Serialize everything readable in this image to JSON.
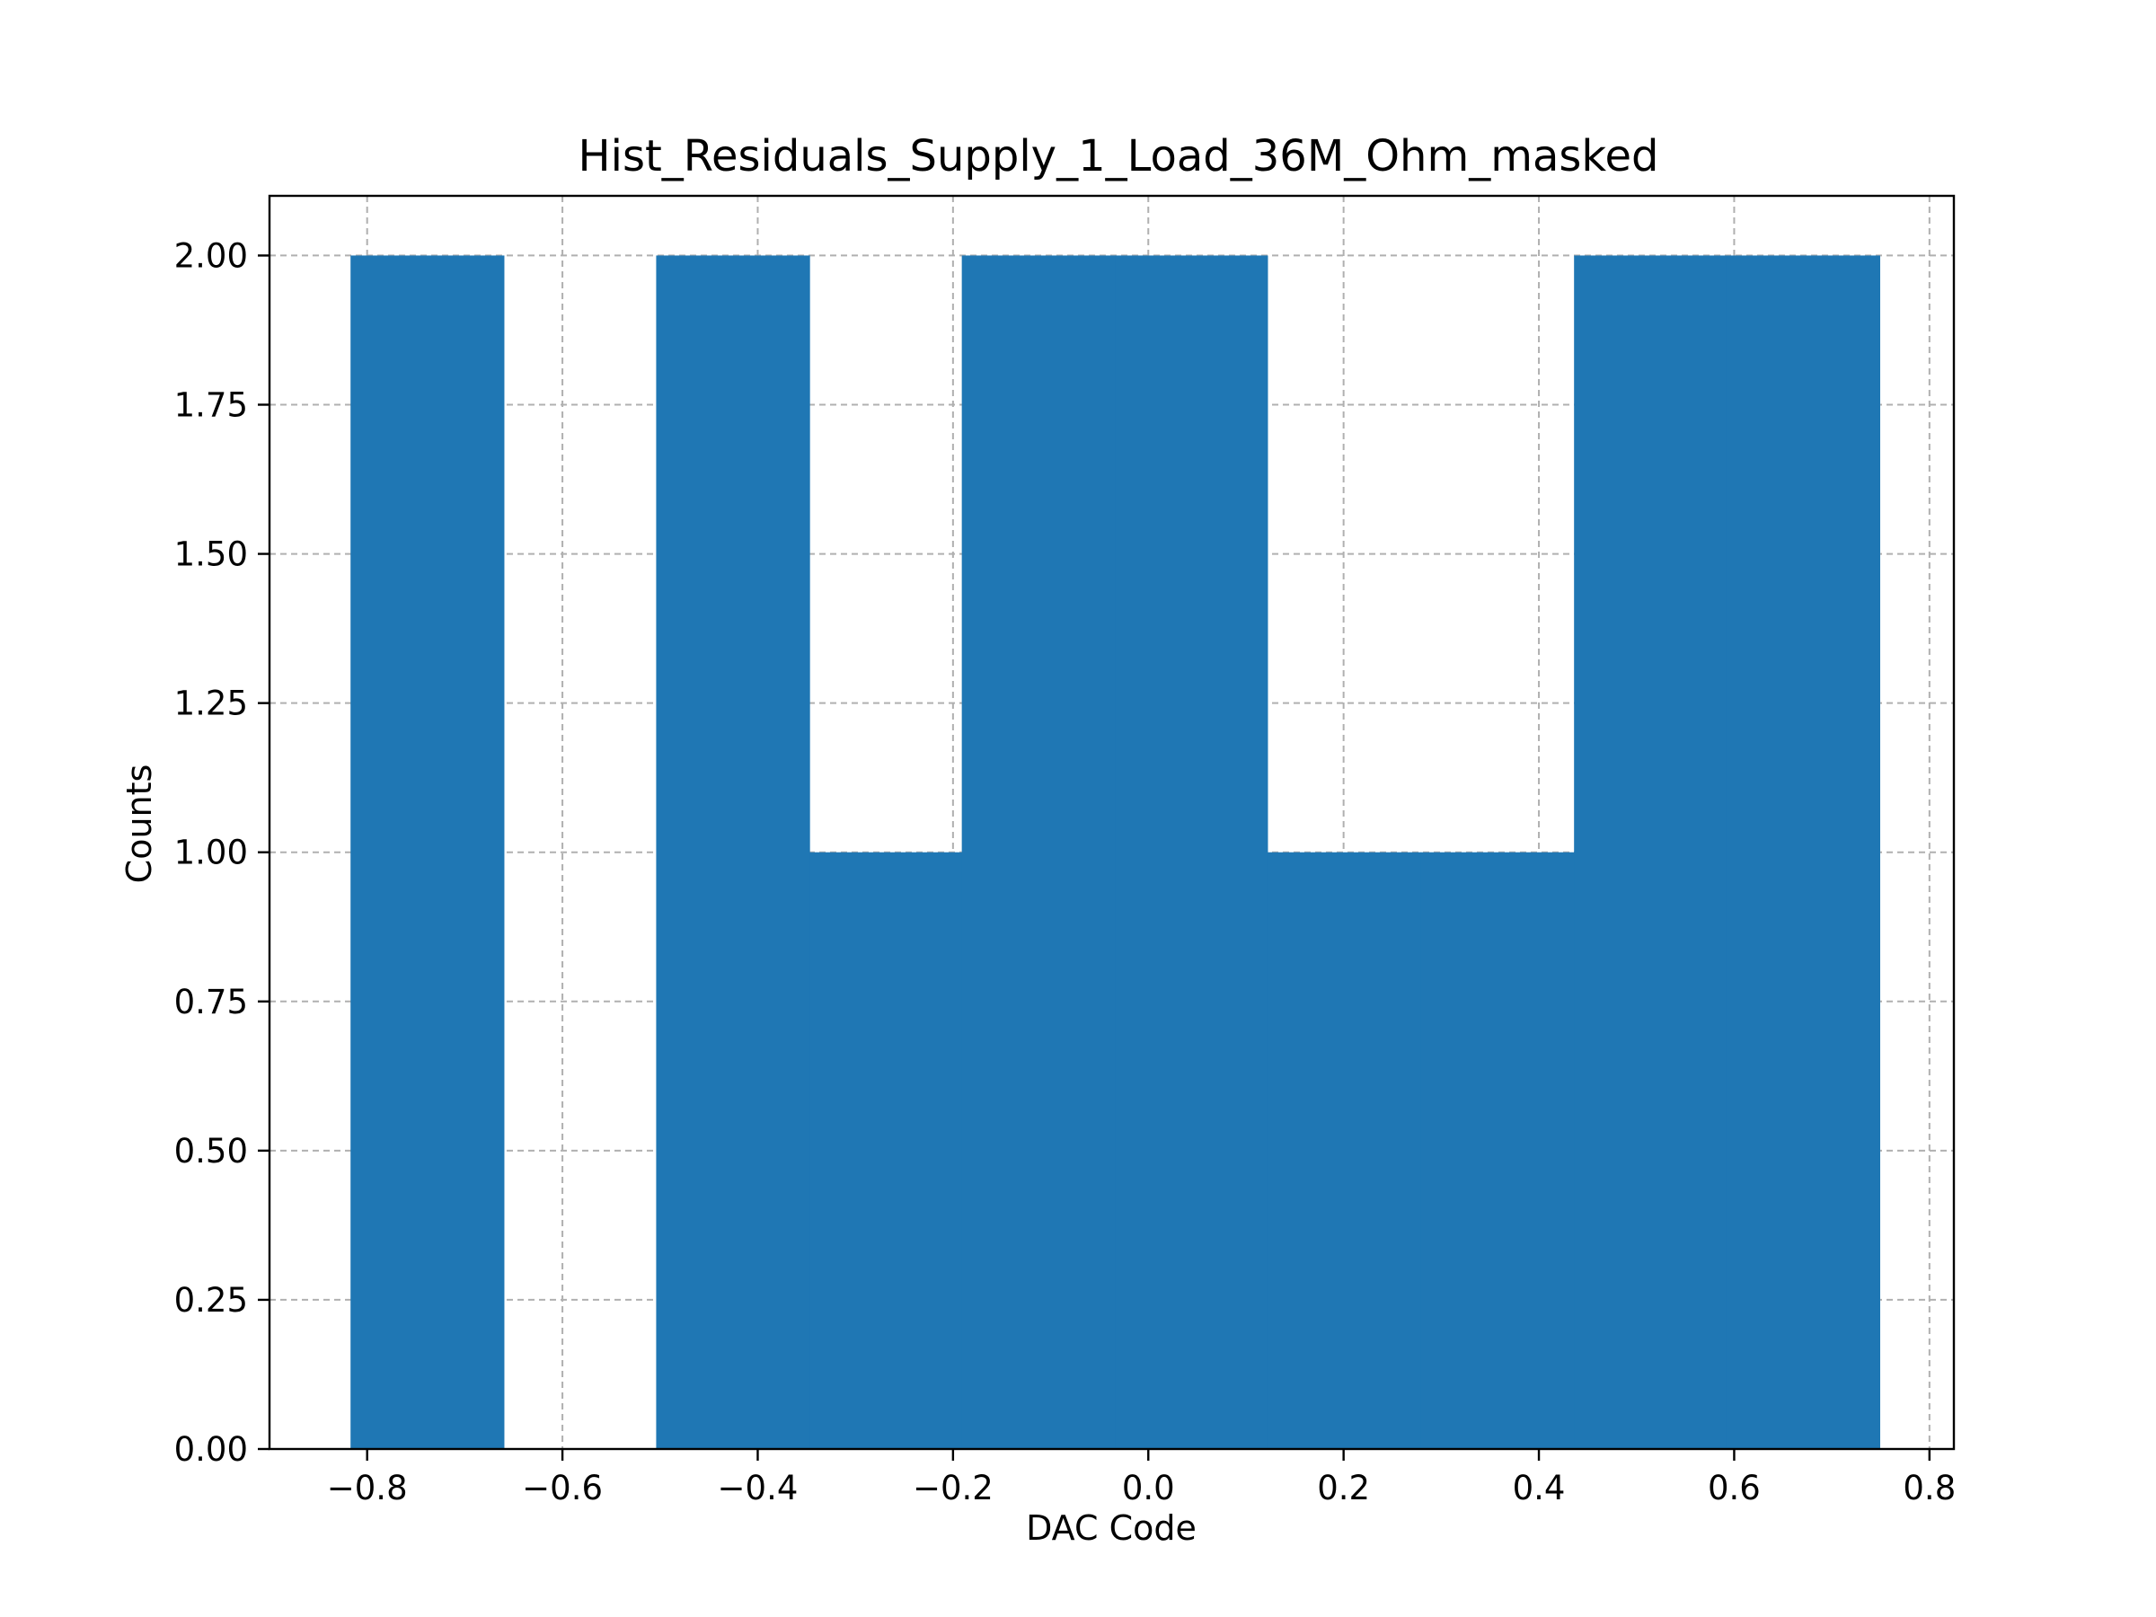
{
  "chart_data": {
    "type": "bar",
    "title": "Hist_Residuals_Supply_1_Load_36M_Ohm_masked",
    "xlabel": "DAC Code",
    "ylabel": "Counts",
    "xlim": [
      -0.9,
      0.825
    ],
    "ylim": [
      0,
      2.1
    ],
    "xticks": [
      -0.8,
      -0.6,
      -0.4,
      -0.2,
      0.0,
      0.2,
      0.4,
      0.6,
      0.8
    ],
    "xtick_labels": [
      "−0.8",
      "−0.6",
      "−0.4",
      "−0.2",
      "0.0",
      "0.2",
      "0.4",
      "0.6",
      "0.8"
    ],
    "yticks": [
      0,
      0.25,
      0.5,
      0.75,
      1.0,
      1.25,
      1.5,
      1.75,
      2.0
    ],
    "ytick_labels": [
      "0.00",
      "0.25",
      "0.50",
      "0.75",
      "1.00",
      "1.25",
      "1.50",
      "1.75",
      "2.00"
    ],
    "bin_edges": [
      -0.817,
      -0.66,
      -0.504,
      -0.347,
      -0.191,
      -0.034,
      0.122,
      0.279,
      0.436,
      0.592,
      0.749
    ],
    "values": [
      2,
      0,
      2,
      1,
      2,
      2,
      1,
      1,
      2,
      2
    ],
    "grid": true,
    "bar_color": "#1f77b4"
  }
}
